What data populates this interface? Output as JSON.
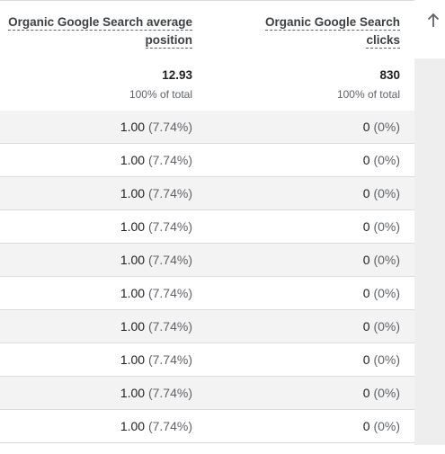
{
  "columns": {
    "position": {
      "line1": "Organic Google Search average",
      "line2": "position"
    },
    "clicks": {
      "line1": "Organic Google Search",
      "line2": "clicks"
    }
  },
  "sort_icon": "arrow-up-icon",
  "totals": {
    "position_value": "12.93",
    "position_sub": "100% of total",
    "clicks_value": "830",
    "clicks_sub": "100% of total"
  },
  "rows": [
    {
      "position": "1.00",
      "position_pct": "(7.74%)",
      "clicks": "0",
      "clicks_pct": "(0%)"
    },
    {
      "position": "1.00",
      "position_pct": "(7.74%)",
      "clicks": "0",
      "clicks_pct": "(0%)"
    },
    {
      "position": "1.00",
      "position_pct": "(7.74%)",
      "clicks": "0",
      "clicks_pct": "(0%)"
    },
    {
      "position": "1.00",
      "position_pct": "(7.74%)",
      "clicks": "0",
      "clicks_pct": "(0%)"
    },
    {
      "position": "1.00",
      "position_pct": "(7.74%)",
      "clicks": "0",
      "clicks_pct": "(0%)"
    },
    {
      "position": "1.00",
      "position_pct": "(7.74%)",
      "clicks": "0",
      "clicks_pct": "(0%)"
    },
    {
      "position": "1.00",
      "position_pct": "(7.74%)",
      "clicks": "0",
      "clicks_pct": "(0%)"
    },
    {
      "position": "1.00",
      "position_pct": "(7.74%)",
      "clicks": "0",
      "clicks_pct": "(0%)"
    },
    {
      "position": "1.00",
      "position_pct": "(7.74%)",
      "clicks": "0",
      "clicks_pct": "(0%)"
    },
    {
      "position": "1.00",
      "position_pct": "(7.74%)",
      "clicks": "0",
      "clicks_pct": "(0%)"
    }
  ]
}
